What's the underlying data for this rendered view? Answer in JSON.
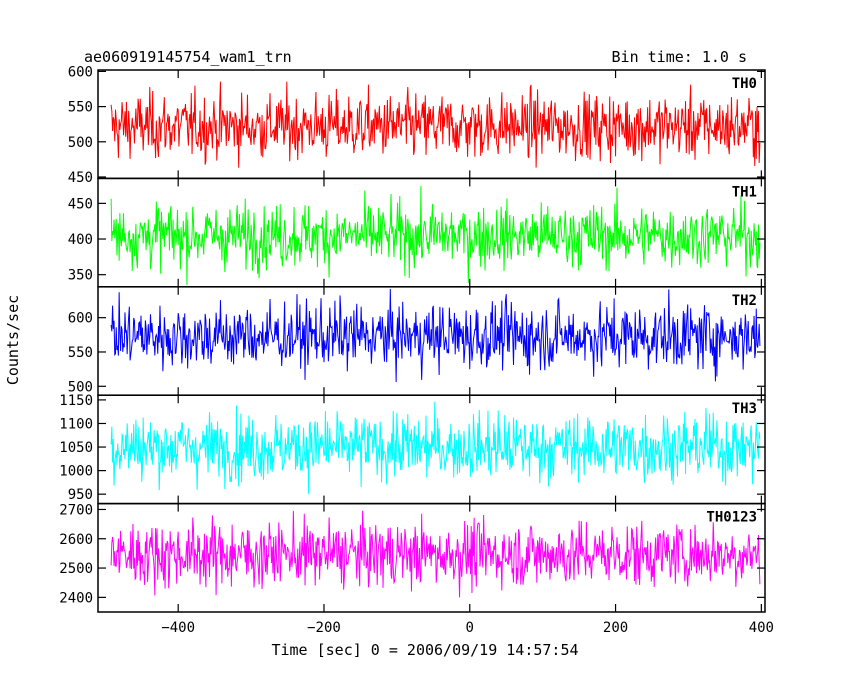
{
  "chart_data": {
    "type": "line",
    "title": "ae060919145754_wam1_trn",
    "subtitle": "Bin time: 1.0 s",
    "xlabel": "Time [sec] 0 = 2006/09/19 14:57:54",
    "ylabel": "Counts/sec",
    "xlim": [
      -510,
      405
    ],
    "x_ticks": [
      -400,
      -200,
      0,
      200,
      400
    ],
    "x_tick_labels": [
      "−400",
      "−200",
      "0",
      "200",
      "400"
    ],
    "x_start": -492,
    "x_end": 398,
    "bin_time": 1.0,
    "series": [
      {
        "name": "TH0",
        "color": "#ff0000",
        "ylim": [
          448,
          602
        ],
        "y_ticks": [
          450,
          500,
          550,
          600
        ],
        "y_tick_labels": [
          "450",
          "500",
          "550",
          "600"
        ],
        "mean": 522,
        "sigma": 23,
        "min": 448,
        "max": 602
      },
      {
        "name": "TH1",
        "color": "#00ff00",
        "ylim": [
          333,
          485
        ],
        "y_ticks": [
          350,
          400,
          450
        ],
        "y_tick_labels": [
          "350",
          "400",
          "450"
        ],
        "mean": 405,
        "sigma": 22,
        "min": 335,
        "max": 482
      },
      {
        "name": "TH2",
        "color": "#0000ff",
        "ylim": [
          487,
          645
        ],
        "y_ticks": [
          500,
          550,
          600
        ],
        "y_tick_labels": [
          "500",
          "550",
          "600"
        ],
        "mean": 573,
        "sigma": 24,
        "min": 490,
        "max": 642
      },
      {
        "name": "TH3",
        "color": "#00ffff",
        "ylim": [
          930,
          1160
        ],
        "y_ticks": [
          950,
          1000,
          1050,
          1100,
          1150
        ],
        "y_tick_labels": [
          "950",
          "1000",
          "1050",
          "1100",
          "1150"
        ],
        "mean": 1050,
        "sigma": 35,
        "min": 935,
        "max": 1155
      },
      {
        "name": "TH0123",
        "color": "#ff00ff",
        "ylim": [
          2350,
          2720
        ],
        "y_ticks": [
          2400,
          2500,
          2600,
          2700
        ],
        "y_tick_labels": [
          "2400",
          "2500",
          "2600",
          "2700"
        ],
        "mean": 2548,
        "sigma": 55,
        "min": 2355,
        "max": 2712
      }
    ],
    "grid": false,
    "legend": "none"
  }
}
